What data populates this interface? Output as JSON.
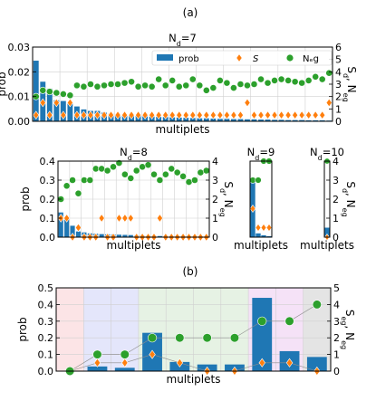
{
  "figure": {
    "panel_a_label": "(a)",
    "panel_b_label": "(b)"
  },
  "legend": {
    "prob": "prob",
    "S": "S",
    "Neg": "Nₑg"
  },
  "colors": {
    "bar": "#1f77b4",
    "S": "#ff7f0e",
    "Neg": "#2ca02c",
    "line": "#8c8c8c",
    "grid": "#d0d0d0",
    "bands": [
      "#fce4e6",
      "#e4e6fb",
      "#e6f2e4",
      "#f5e2f7",
      "#e4e4e4"
    ]
  },
  "chart_data": [
    {
      "id": "Nd7",
      "type": "bar",
      "title": "N_d=7",
      "title_base": "N",
      "title_sub": "d",
      "title_rest": "=7",
      "xlabel": "multiplets",
      "ylabel": "prob",
      "y2label": "S_d, N_eg",
      "ylim": [
        0,
        0.03
      ],
      "y2lim": [
        0,
        6
      ],
      "yticks": [
        "0.00",
        "0.01",
        "0.02",
        "0.03"
      ],
      "y2ticks": [
        "0",
        "1",
        "2",
        "3",
        "4",
        "5",
        "6"
      ],
      "grid": true,
      "legend_position": "top-right",
      "prob": [
        0.0245,
        0.016,
        0.0132,
        0.0085,
        0.0082,
        0.0072,
        0.006,
        0.0048,
        0.0042,
        0.0042,
        0.0035,
        0.003,
        0.0028,
        0.0026,
        0.0024,
        0.0022,
        0.002,
        0.0019,
        0.0018,
        0.0017,
        0.0016,
        0.0015,
        0.0014,
        0.0013,
        0.0012,
        0.0012,
        0.0011,
        0.001,
        0.001,
        0.0009,
        0.0009,
        0.0008,
        0.0008,
        0.0007,
        0.0007,
        0.0006,
        0.0006,
        0.0005,
        0.0005,
        0.0005,
        0.0004,
        0.0004,
        0.0004,
        0.0003
      ],
      "S": [
        0.5,
        1.5,
        0.5,
        1.5,
        0.5,
        1.5,
        0.5,
        0.5,
        0.5,
        0.5,
        0.5,
        0.5,
        0.5,
        0.5,
        0.5,
        0.5,
        0.5,
        0.5,
        0.5,
        0.5,
        0.5,
        0.5,
        0.5,
        0.5,
        0.5,
        0.5,
        0.5,
        0.5,
        0.5,
        0.5,
        0.5,
        1.5,
        0.5,
        0.5,
        0.5,
        0.5,
        0.5,
        0.5,
        0.5,
        0.5,
        0.5,
        0.5,
        0.5,
        1.5
      ],
      "Neg": [
        2.0,
        2.5,
        2.4,
        2.3,
        2.2,
        2.1,
        2.9,
        2.8,
        3.0,
        2.8,
        2.9,
        3.0,
        3.0,
        3.1,
        3.2,
        2.8,
        2.9,
        2.8,
        3.4,
        2.9,
        3.3,
        2.8,
        2.9,
        3.4,
        2.9,
        2.5,
        2.7,
        3.3,
        3.1,
        2.7,
        3.0,
        2.9,
        3.0,
        3.4,
        3.1,
        3.3,
        3.4,
        3.3,
        3.2,
        3.1,
        3.3,
        3.6,
        3.4,
        3.9
      ]
    },
    {
      "id": "Nd8",
      "type": "bar",
      "title": "N_d=8",
      "title_base": "N",
      "title_sub": "d",
      "title_rest": "=8",
      "xlabel": "multiplets",
      "ylabel": "prob",
      "y2label": "S_d, N_eg",
      "ylim": [
        0,
        0.4
      ],
      "y2lim": [
        0,
        4
      ],
      "yticks": [
        "0.0",
        "0.1",
        "0.2",
        "0.3",
        "0.4"
      ],
      "y2ticks": [
        "0",
        "1",
        "2",
        "3",
        "4"
      ],
      "grid": true,
      "prob": [
        0.13,
        0.105,
        0.06,
        0.03,
        0.025,
        0.02,
        0.018,
        0.016,
        0.015,
        0.014,
        0.013,
        0.012,
        0.011,
        0.01,
        0.009,
        0.008,
        0.007,
        0.006,
        0.006,
        0.005,
        0.005,
        0.004,
        0.004,
        0.003,
        0.003,
        0.003
      ],
      "S": [
        1,
        1,
        0,
        0.5,
        0,
        0,
        0,
        1,
        0,
        0,
        1,
        1,
        1,
        0,
        0,
        0,
        0,
        1,
        0,
        0,
        0,
        0,
        0,
        0,
        0,
        0
      ],
      "Neg": [
        2.0,
        2.7,
        3.0,
        2.3,
        3.0,
        3.0,
        3.6,
        3.6,
        3.5,
        3.7,
        3.9,
        3.3,
        3.1,
        3.5,
        3.7,
        3.8,
        3.3,
        3.0,
        3.3,
        3.6,
        3.4,
        3.2,
        2.9,
        3.0,
        3.4,
        3.5
      ]
    },
    {
      "id": "Nd9",
      "type": "bar",
      "title": "N_d=9",
      "title_base": "N",
      "title_sub": "d",
      "title_rest": "=9",
      "xlabel": "multiplets",
      "ylim": [
        0,
        0.4
      ],
      "y2lim": [
        0,
        4
      ],
      "prob": [
        0.3,
        0.02,
        0.01,
        0.005
      ],
      "S": [
        1.5,
        0.5,
        0.5,
        0.5
      ],
      "Neg": [
        3.0,
        3.0,
        4.0,
        4.0
      ]
    },
    {
      "id": "Nd10",
      "type": "bar",
      "title": "N_d=10",
      "title_base": "N",
      "title_sub": "d",
      "title_rest": "=10",
      "xlabel": "multiplets",
      "y2label": "S_d, N_eg",
      "ylim": [
        0,
        0.4
      ],
      "y2lim": [
        0,
        4
      ],
      "y2ticks": [
        "0",
        "1",
        "2",
        "3",
        "4"
      ],
      "prob": [
        0.05
      ],
      "S": [
        0
      ],
      "Neg": [
        4
      ]
    },
    {
      "id": "b",
      "type": "bar",
      "xlabel": "multiplets",
      "ylabel": "prob",
      "y2label": "S_eg, N_eg",
      "ylim": [
        0,
        0.5
      ],
      "y2lim": [
        0,
        5
      ],
      "yticks": [
        "0.0",
        "0.1",
        "0.2",
        "0.3",
        "0.4",
        "0.5"
      ],
      "y2ticks": [
        "0",
        "1",
        "2",
        "3",
        "4",
        "5"
      ],
      "grid": true,
      "prob": [
        0.0,
        0.028,
        0.02,
        0.23,
        0.055,
        0.04,
        0.04,
        0.44,
        0.12,
        0.085
      ],
      "S": [
        0,
        0.5,
        0.5,
        1,
        0.5,
        0,
        0,
        0.5,
        0.5,
        0
      ],
      "Neg": [
        0,
        1,
        1,
        2,
        2,
        2,
        2,
        3,
        3,
        4
      ],
      "bands": [
        [
          0,
          1
        ],
        [
          1,
          3
        ],
        [
          3,
          7
        ],
        [
          7,
          9
        ],
        [
          9,
          10
        ]
      ]
    }
  ]
}
